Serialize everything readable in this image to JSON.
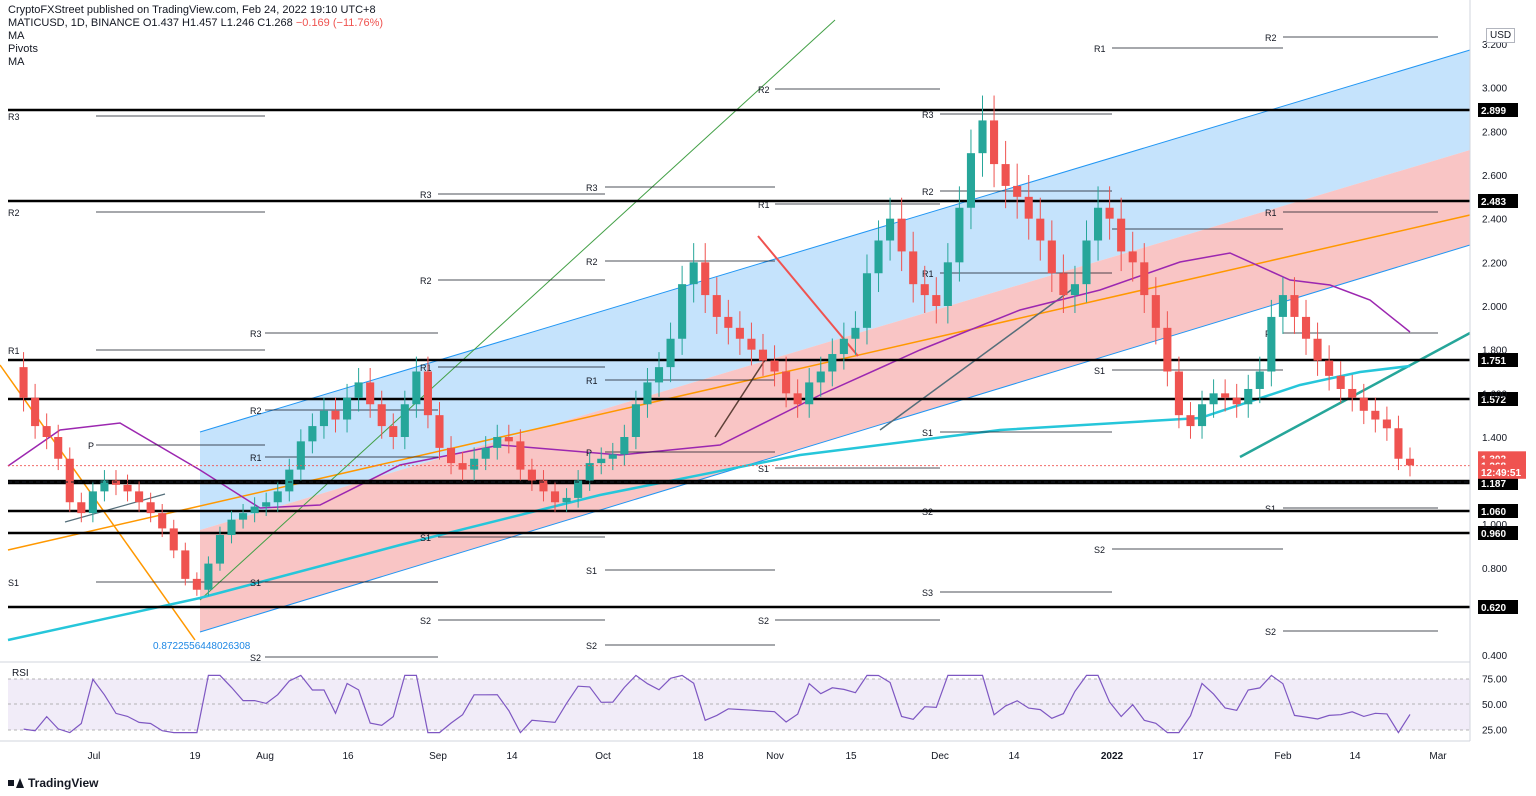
{
  "header": {
    "publisher": "CryptoFXStreet published on TradingView.com, Feb 24, 2022 19:10 UTC+8",
    "symbol": "MATICUSD, 1D, BINANCE",
    "open": "O1.437",
    "high": "H1.457",
    "low": "L1.246",
    "close": "C1.268",
    "change": "−0.169 (−11.76%)",
    "indicators": [
      "MA",
      "Pivots",
      "MA"
    ]
  },
  "currency": "USD",
  "rsi_label": "RSI",
  "footer_logo": "TradingView",
  "fib_label": "0.87225564480263​08",
  "chart_data": {
    "type": "candlestick",
    "title": "MATICUSD, 1D, BINANCE",
    "ylim": [
      0.3,
      3.3
    ],
    "y_ticks": [
      "3.200",
      "3.000",
      "2.800",
      "2.600",
      "2.400",
      "2.200",
      "2.000",
      "1.800",
      "1.600",
      "1.400",
      "1.000",
      "0.800",
      "0.400"
    ],
    "x_ticks": [
      "Jul",
      "19",
      "Aug",
      "16",
      "Sep",
      "14",
      "Oct",
      "18",
      "Nov",
      "15",
      "Dec",
      "14",
      "2022",
      "17",
      "Feb",
      "14",
      "Mar"
    ],
    "horizontal_levels": [
      {
        "label": "2.899",
        "value": 2.899
      },
      {
        "label": "2.483",
        "value": 2.483
      },
      {
        "label": "1.751",
        "value": 1.751
      },
      {
        "label": "1.572",
        "value": 1.572
      },
      {
        "label": "1.198",
        "value": 1.198
      },
      {
        "label": "1.187",
        "value": 1.187
      },
      {
        "label": "1.060",
        "value": 1.06
      },
      {
        "label": "0.960",
        "value": 0.96
      },
      {
        "label": "0.620",
        "value": 0.62
      }
    ],
    "price_tags": [
      {
        "label": "1.302",
        "value": 1.302
      },
      {
        "label": "1.268",
        "value": 1.268
      },
      {
        "label": "12:49:51",
        "value": 1.24
      }
    ],
    "pivot_labels": [
      "R3",
      "R2",
      "R1",
      "P",
      "S1",
      "S2",
      "S3"
    ],
    "last_close": 1.268,
    "rsi": {
      "ticks": [
        "75.00",
        "50.00",
        "25.00"
      ],
      "upper": 70,
      "lower": 30
    },
    "close_series": [
      1.72,
      1.58,
      1.45,
      1.4,
      1.3,
      1.1,
      1.05,
      1.15,
      1.2,
      1.18,
      1.15,
      1.1,
      1.05,
      0.98,
      0.88,
      0.75,
      0.7,
      0.82,
      0.95,
      1.02,
      1.05,
      1.08,
      1.1,
      1.15,
      1.25,
      1.38,
      1.45,
      1.52,
      1.48,
      1.58,
      1.65,
      1.55,
      1.45,
      1.4,
      1.55,
      1.7,
      1.5,
      1.35,
      1.28,
      1.25,
      1.3,
      1.35,
      1.4,
      1.38,
      1.25,
      1.2,
      1.15,
      1.1,
      1.12,
      1.2,
      1.28,
      1.3,
      1.32,
      1.4,
      1.55,
      1.65,
      1.72,
      1.85,
      2.1,
      2.2,
      2.05,
      1.95,
      1.9,
      1.85,
      1.8,
      1.75,
      1.7,
      1.6,
      1.55,
      1.65,
      1.7,
      1.78,
      1.85,
      1.9,
      2.15,
      2.3,
      2.4,
      2.25,
      2.1,
      2.05,
      2.0,
      2.2,
      2.45,
      2.7,
      2.85,
      2.65,
      2.55,
      2.5,
      2.4,
      2.3,
      2.15,
      2.05,
      2.1,
      2.3,
      2.45,
      2.4,
      2.25,
      2.2,
      2.05,
      1.9,
      1.7,
      1.5,
      1.45,
      1.55,
      1.6,
      1.58,
      1.55,
      1.62,
      1.7,
      1.95,
      2.05,
      1.95,
      1.85,
      1.75,
      1.68,
      1.62,
      1.58,
      1.52,
      1.48,
      1.44,
      1.3,
      1.27
    ]
  }
}
